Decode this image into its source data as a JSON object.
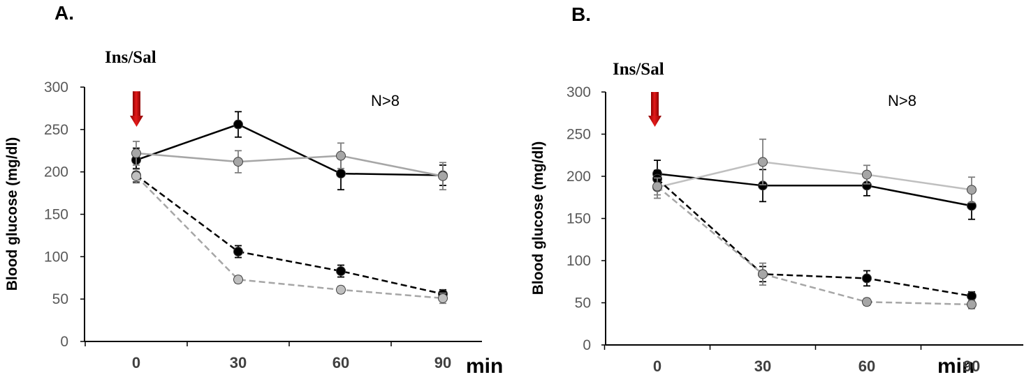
{
  "chart_data": [
    {
      "type": "line",
      "panel_label": "A.",
      "annotation": "Ins/Sal",
      "n_label": "N>8",
      "ylabel": "Blood glucose (mg/dl)",
      "xunit": "min",
      "x": [
        0,
        30,
        60,
        90
      ],
      "x_tick_labels": [
        "0",
        "30",
        "60",
        "90"
      ],
      "ylim": [
        0,
        300
      ],
      "yticks": [
        0,
        50,
        100,
        150,
        200,
        250,
        300
      ],
      "y_tick_labels": [
        "0",
        "50",
        "100",
        "150",
        "200",
        "250",
        "300"
      ],
      "series": [
        {
          "name": "black-solid",
          "color": "#000000",
          "marker_color": "#000000",
          "dash": "solid",
          "values": [
            214,
            256,
            198,
            196
          ],
          "errors": [
            14,
            15,
            19,
            12
          ]
        },
        {
          "name": "gray-solid",
          "color": "#a6a6a6",
          "marker_color": "#a6a6a6",
          "dash": "solid",
          "values": [
            222,
            212,
            219,
            195
          ],
          "errors": [
            14,
            13,
            15,
            16
          ]
        },
        {
          "name": "black-dashed",
          "color": "#000000",
          "marker_color": "#000000",
          "dash": "dashed",
          "values": [
            196,
            106,
            83,
            56
          ],
          "errors": [
            8,
            7,
            7,
            5
          ]
        },
        {
          "name": "gray-dashed",
          "color": "#a6a6a6",
          "marker_color": "#bfbfbf",
          "dash": "dashed",
          "values": [
            195,
            73,
            61,
            51
          ],
          "errors": [
            8,
            4,
            4,
            6
          ]
        }
      ]
    },
    {
      "type": "line",
      "panel_label": "B.",
      "annotation": "Ins/Sal",
      "n_label": "N>8",
      "ylabel": "Blood glucose (mg/dl)",
      "xunit": "min",
      "x": [
        0,
        30,
        60,
        90
      ],
      "x_tick_labels": [
        "0",
        "30",
        "60",
        "90"
      ],
      "ylim": [
        0,
        300
      ],
      "yticks": [
        0,
        50,
        100,
        150,
        200,
        250,
        300
      ],
      "y_tick_labels": [
        "0",
        "50",
        "100",
        "150",
        "200",
        "250",
        "300"
      ],
      "series": [
        {
          "name": "black-solid",
          "color": "#000000",
          "marker_color": "#000000",
          "dash": "solid",
          "values": [
            203,
            189,
            189,
            165
          ],
          "errors": [
            16,
            19,
            12,
            16
          ]
        },
        {
          "name": "gray-solid",
          "color": "#bfbfbf",
          "marker_color": "#a6a6a6",
          "dash": "solid",
          "values": [
            187,
            217,
            202,
            184
          ],
          "errors": [
            13,
            27,
            11,
            15
          ]
        },
        {
          "name": "black-dashed",
          "color": "#000000",
          "marker_color": "#000000",
          "dash": "dashed",
          "values": [
            197,
            84,
            79,
            58
          ],
          "errors": [
            10,
            9,
            9,
            5
          ]
        },
        {
          "name": "gray-dashed",
          "color": "#a6a6a6",
          "marker_color": "#a6a6a6",
          "dash": "dashed",
          "values": [
            188,
            84,
            51,
            48
          ],
          "errors": [
            10,
            13,
            4,
            5
          ]
        }
      ]
    }
  ]
}
